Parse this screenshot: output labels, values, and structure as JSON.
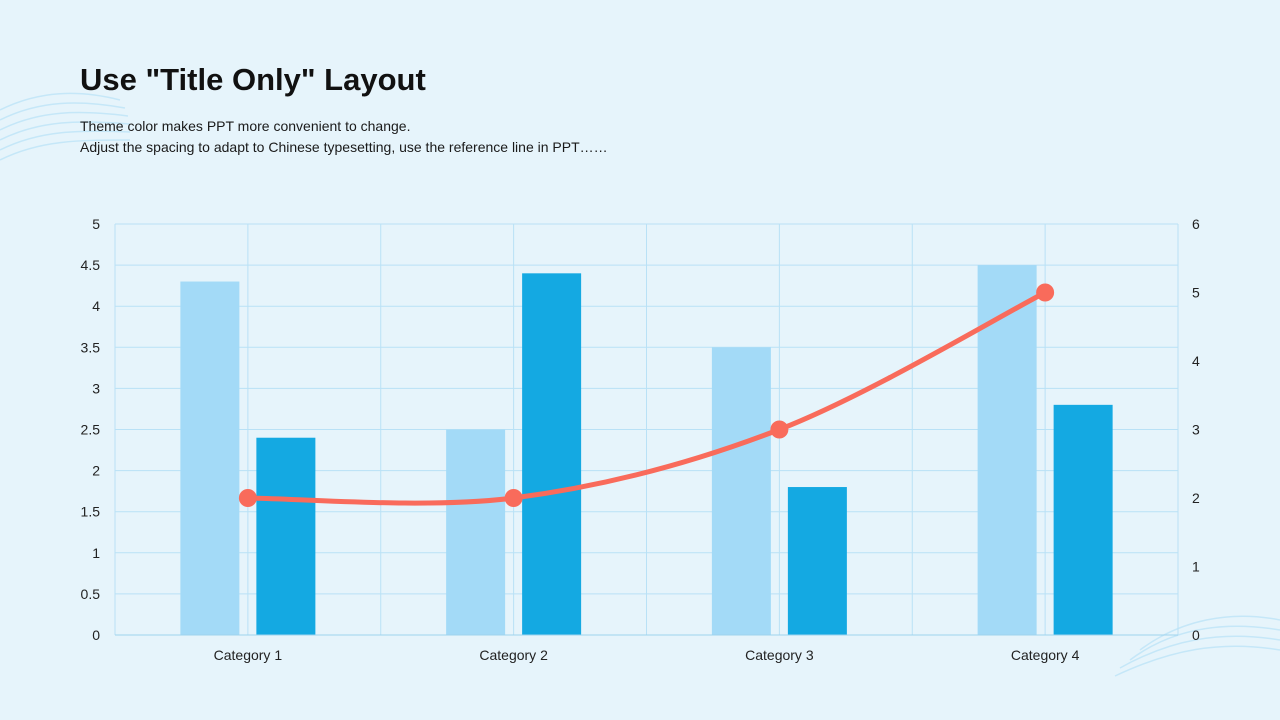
{
  "slide": {
    "title": "Use \"Title Only\" Layout",
    "subtitle_lines": [
      "Theme color makes PPT more convenient to change.",
      "Adjust the spacing to adapt to Chinese typesetting, use the reference line in PPT……"
    ]
  },
  "colors": {
    "background": "#e6f4fb",
    "series1": "#a3daf7",
    "series2": "#14a9e2",
    "series3": "#f96b5b",
    "grid": "#b9e1f6"
  },
  "chart_data": {
    "type": "bar",
    "categories": [
      "Category 1",
      "Category 2",
      "Category 3",
      "Category 4"
    ],
    "series": [
      {
        "type": "bar",
        "axis": "left",
        "values": [
          4.3,
          2.5,
          3.5,
          4.5
        ]
      },
      {
        "type": "bar",
        "axis": "left",
        "values": [
          2.4,
          4.4,
          1.8,
          2.8
        ]
      },
      {
        "type": "line",
        "axis": "right",
        "smooth": true,
        "values": [
          2,
          2,
          3,
          5
        ]
      }
    ],
    "ylim": [
      0,
      5
    ],
    "y_ticks": [
      "0",
      "0.5",
      "1",
      "1.5",
      "2",
      "2.5",
      "3",
      "3.5",
      "4",
      "4.5",
      "5"
    ],
    "y2lim": [
      0,
      6
    ],
    "y2_ticks": [
      "0",
      "1",
      "2",
      "3",
      "4",
      "5",
      "6"
    ],
    "grid": true,
    "legend": "none"
  }
}
